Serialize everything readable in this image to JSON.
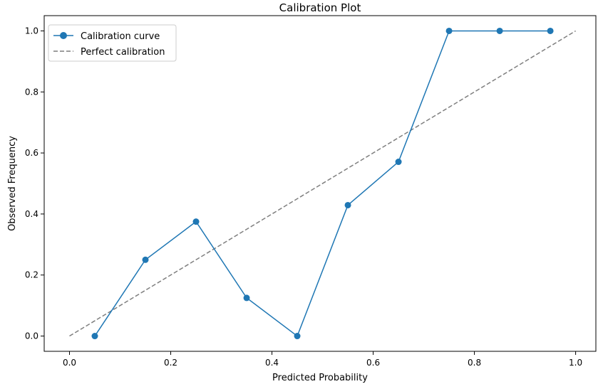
{
  "chart_data": {
    "type": "line",
    "title": "Calibration Plot",
    "xlabel": "Predicted Probability",
    "ylabel": "Observed Frequency",
    "xlim": [
      -0.05,
      1.04
    ],
    "ylim": [
      -0.05,
      1.05
    ],
    "xticks": [
      0.0,
      0.2,
      0.4,
      0.6,
      0.8,
      1.0
    ],
    "yticks": [
      0.0,
      0.2,
      0.4,
      0.6,
      0.8,
      1.0
    ],
    "xtick_labels": [
      "0.0",
      "0.2",
      "0.4",
      "0.6",
      "0.8",
      "1.0"
    ],
    "ytick_labels": [
      "0.0",
      "0.2",
      "0.4",
      "0.6",
      "0.8",
      "1.0"
    ],
    "grid": false,
    "legend_position": "top-left",
    "series": [
      {
        "name": "Calibration curve",
        "style": "solid-with-markers",
        "color": "#1f77b4",
        "x": [
          0.05,
          0.15,
          0.25,
          0.35,
          0.45,
          0.55,
          0.65,
          0.75,
          0.85,
          0.95
        ],
        "y": [
          0.0,
          0.25,
          0.375,
          0.125,
          0.0,
          0.429,
          0.571,
          1.0,
          1.0,
          1.0
        ]
      },
      {
        "name": "Perfect calibration",
        "style": "dashed",
        "color": "#7f7f7f",
        "x": [
          0.0,
          1.0
        ],
        "y": [
          0.0,
          1.0
        ]
      }
    ]
  }
}
